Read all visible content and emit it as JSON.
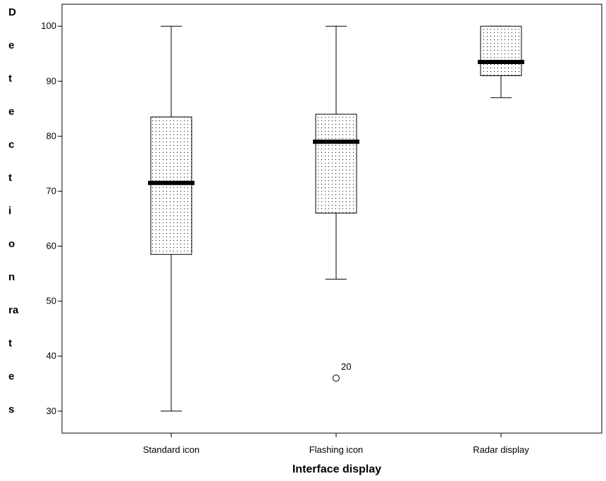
{
  "chart_data": {
    "type": "box",
    "title": "",
    "xlabel": "Interface display",
    "ylabel_fragments": [
      "D",
      "e",
      "t",
      "e",
      "c",
      "t",
      "i",
      "o",
      "n",
      "ra",
      "t",
      "e",
      "s"
    ],
    "ylim": [
      26,
      104
    ],
    "yticks": [
      30,
      40,
      50,
      60,
      70,
      80,
      90,
      100
    ],
    "ytick_labels": [
      "30",
      "40",
      "50",
      "60",
      "70",
      "80",
      "90",
      "100"
    ],
    "grid": false,
    "categories": [
      "Standard icon",
      "Flashing icon",
      "Radar display"
    ],
    "boxes": [
      {
        "min": 30,
        "q1": 58.5,
        "median": 71.5,
        "q3": 83.5,
        "max": 100,
        "outliers": []
      },
      {
        "min": 54,
        "q1": 66,
        "median": 79,
        "q3": 84,
        "max": 100,
        "outliers": [
          {
            "value": 36,
            "label": "20"
          }
        ]
      },
      {
        "min": 87,
        "q1": 91,
        "median": 93.5,
        "q3": 100,
        "max": 100,
        "outliers": []
      }
    ],
    "box_fill": "dotted",
    "colors": {
      "line": "#000000",
      "median": "#000000",
      "dots": "#000000",
      "background": "#ffffff"
    }
  }
}
